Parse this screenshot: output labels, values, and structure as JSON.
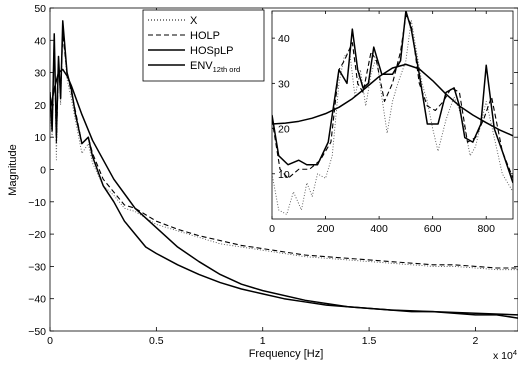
{
  "chart_data": [
    {
      "id": "main",
      "type": "line",
      "xlabel": "Frequency [Hz]",
      "ylabel": "Magnitude",
      "x_multiplier_label": "x 10",
      "x_multiplier_exp": "4",
      "xlim": [
        0,
        2.2
      ],
      "ylim": [
        -50,
        50
      ],
      "xticks": [
        0,
        0.5,
        1,
        1.5,
        2
      ],
      "xtick_labels": [
        "0",
        "0.5",
        "1",
        "1.5",
        "2"
      ],
      "yticks": [
        -50,
        -40,
        -30,
        -20,
        -10,
        0,
        10,
        20,
        30,
        40,
        50
      ],
      "ytick_labels": [
        "−50",
        "−40",
        "−30",
        "−20",
        "−10",
        "0",
        "10",
        "20",
        "30",
        "40",
        "50"
      ],
      "legend": {
        "placement": "top-center",
        "entries": [
          {
            "label": "X",
            "style": "dotted"
          },
          {
            "label": "HOLP",
            "style": "dashed"
          },
          {
            "label": "HOSpLP",
            "style": "solid"
          },
          {
            "label": "ENV",
            "subscript": "12th ord",
            "style": "solid"
          }
        ]
      },
      "series": [
        {
          "name": "X",
          "style": "dotted",
          "x": [
            0,
            0.01,
            0.02,
            0.03,
            0.04,
            0.05,
            0.06,
            0.08,
            0.1,
            0.12,
            0.15,
            0.18,
            0.2,
            0.25,
            0.3,
            0.35,
            0.4,
            0.45,
            0.5,
            0.6,
            0.7,
            0.8,
            0.9,
            1.0,
            1.1,
            1.2,
            1.3,
            1.4,
            1.5,
            1.6,
            1.7,
            1.8,
            1.9,
            2.0,
            2.1,
            2.2
          ],
          "y": [
            18,
            10,
            42,
            3,
            35,
            20,
            44,
            28,
            22,
            15,
            5,
            8,
            2,
            -5,
            -8,
            -12,
            -13,
            -15,
            -17,
            -19,
            -21,
            -23,
            -24,
            -25,
            -26,
            -27,
            -27.5,
            -28,
            -28.5,
            -29,
            -29.5,
            -30,
            -30,
            -30.5,
            -31,
            -31
          ]
        },
        {
          "name": "HOLP",
          "style": "dashed",
          "x": [
            0,
            0.01,
            0.02,
            0.03,
            0.04,
            0.05,
            0.06,
            0.08,
            0.1,
            0.12,
            0.15,
            0.18,
            0.2,
            0.25,
            0.3,
            0.35,
            0.4,
            0.45,
            0.5,
            0.6,
            0.7,
            0.8,
            0.9,
            1.0,
            1.1,
            1.2,
            1.3,
            1.4,
            1.5,
            1.6,
            1.7,
            1.8,
            1.9,
            2.0,
            2.1,
            2.2
          ],
          "y": [
            22,
            14,
            40,
            8,
            33,
            24,
            42,
            30,
            24,
            18,
            8,
            10,
            5,
            -3,
            -7,
            -11,
            -12,
            -14,
            -16,
            -18.5,
            -20.5,
            -22,
            -23.5,
            -24.5,
            -25.5,
            -26.5,
            -27,
            -27.5,
            -28,
            -28.5,
            -29,
            -29.5,
            -29.5,
            -30,
            -30.5,
            -30.5
          ]
        },
        {
          "name": "HOSpLP",
          "style": "solid",
          "x": [
            0,
            0.01,
            0.02,
            0.03,
            0.04,
            0.05,
            0.06,
            0.08,
            0.1,
            0.12,
            0.15,
            0.18,
            0.2,
            0.25,
            0.3,
            0.35,
            0.4,
            0.45,
            0.5,
            0.6,
            0.7,
            0.8,
            0.9,
            1.0,
            1.1,
            1.2,
            1.3,
            1.4,
            1.5,
            1.6,
            1.7,
            1.8,
            1.9,
            2.0,
            2.1,
            2.2
          ],
          "y": [
            24,
            12,
            42,
            10,
            35,
            22,
            46,
            30,
            25,
            17,
            8,
            10,
            4,
            -5,
            -10,
            -16,
            -20,
            -24,
            -26,
            -29.5,
            -32.5,
            -35,
            -37,
            -38.5,
            -40,
            -41,
            -42,
            -42.5,
            -43,
            -43.5,
            -44,
            -44,
            -44.5,
            -45,
            -45,
            -46
          ]
        },
        {
          "name": "ENV",
          "style": "solid",
          "x": [
            0,
            0.02,
            0.04,
            0.06,
            0.08,
            0.1,
            0.15,
            0.2,
            0.3,
            0.4,
            0.5,
            0.6,
            0.7,
            0.8,
            0.9,
            1.0,
            1.2,
            1.4,
            1.6,
            1.8,
            2.0,
            2.2
          ],
          "y": [
            18,
            25,
            30,
            31,
            29,
            26,
            17,
            9,
            -3,
            -12,
            -18,
            -24,
            -28.5,
            -32.5,
            -35.5,
            -37.5,
            -40.5,
            -42.5,
            -43.5,
            -44,
            -44.5,
            -45
          ]
        }
      ]
    },
    {
      "id": "inset",
      "type": "line",
      "xlim": [
        0,
        900
      ],
      "ylim": [
        0,
        46
      ],
      "xticks": [
        0,
        200,
        400,
        600,
        800
      ],
      "xtick_labels": [
        "0",
        "200",
        "400",
        "600",
        "800"
      ],
      "yticks": [
        10,
        20,
        30,
        40
      ],
      "ytick_labels": [
        "10",
        "20",
        "30",
        "40"
      ],
      "series": [
        {
          "name": "X",
          "style": "dotted",
          "x": [
            0,
            25,
            55,
            80,
            110,
            130,
            150,
            170,
            200,
            225,
            250,
            270,
            290,
            310,
            330,
            350,
            370,
            390,
            410,
            430,
            450,
            470,
            500,
            520,
            540,
            560,
            580,
            600,
            620,
            650,
            680,
            700,
            720,
            740,
            760,
            780,
            800,
            830,
            860,
            900
          ],
          "y": [
            10,
            2,
            1,
            6,
            2,
            8,
            5,
            10,
            9,
            14,
            30,
            36,
            37,
            27,
            33,
            25,
            32,
            36,
            27,
            19,
            26,
            30,
            35,
            44,
            37,
            30,
            26,
            20,
            15,
            22,
            27,
            24,
            20,
            14,
            16,
            21,
            26,
            18,
            10,
            6
          ]
        },
        {
          "name": "HOLP",
          "style": "dashed",
          "x": [
            0,
            30,
            60,
            100,
            140,
            180,
            220,
            250,
            270,
            300,
            320,
            340,
            370,
            390,
            420,
            450,
            480,
            500,
            520,
            550,
            580,
            610,
            640,
            670,
            700,
            730,
            760,
            790,
            820,
            860,
            900
          ],
          "y": [
            22,
            11,
            9,
            11,
            11,
            13,
            17,
            33,
            35,
            39,
            30,
            28,
            37,
            35,
            26,
            30,
            37,
            45,
            43,
            30,
            25,
            24,
            26,
            29,
            28,
            17,
            18,
            22,
            27,
            15,
            9
          ]
        },
        {
          "name": "HOSpLP",
          "style": "solid",
          "x": [
            0,
            25,
            60,
            100,
            130,
            170,
            210,
            250,
            280,
            300,
            320,
            340,
            360,
            380,
            410,
            450,
            480,
            500,
            520,
            550,
            580,
            620,
            650,
            680,
            700,
            720,
            750,
            780,
            800,
            830,
            860,
            900
          ],
          "y": [
            23,
            14,
            12,
            13,
            12,
            12,
            17,
            33,
            30,
            42,
            33,
            29,
            30,
            38,
            32,
            32,
            35,
            46,
            42,
            32,
            21,
            21,
            28,
            29,
            25,
            18,
            17,
            21,
            34,
            20,
            15,
            8
          ]
        },
        {
          "name": "ENV",
          "style": "solid",
          "x": [
            0,
            50,
            100,
            150,
            200,
            250,
            300,
            350,
            400,
            450,
            500,
            550,
            600,
            650,
            700,
            750,
            800,
            850,
            900
          ],
          "y": [
            21,
            21.2,
            21.6,
            22.3,
            23.3,
            24.7,
            26.6,
            29,
            31.5,
            33.4,
            34.2,
            33.2,
            30.6,
            27.6,
            25,
            23,
            21.3,
            19.7,
            18.4
          ]
        }
      ]
    }
  ]
}
